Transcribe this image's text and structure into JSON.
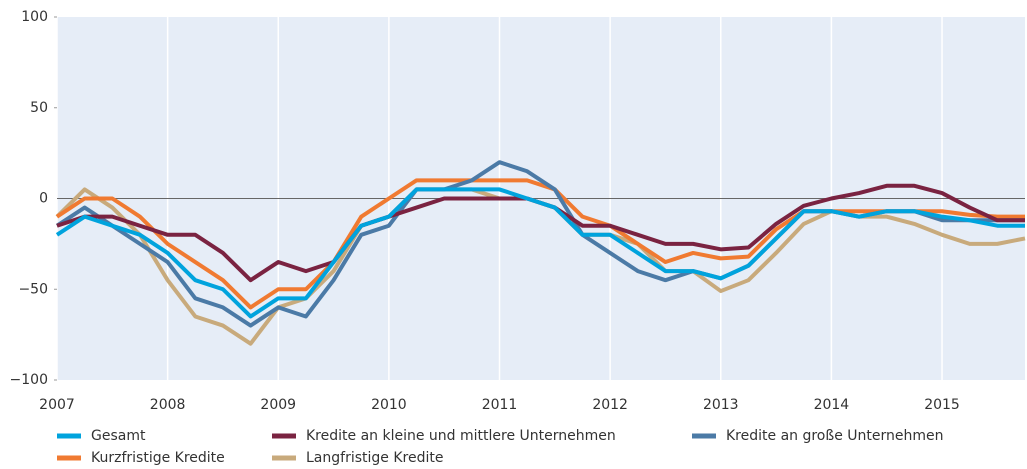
{
  "chart_data": {
    "type": "line",
    "x": [
      2007,
      2007.25,
      2007.5,
      2007.75,
      2008,
      2008.25,
      2008.5,
      2008.75,
      2009,
      2009.25,
      2009.5,
      2009.75,
      2010,
      2010.25,
      2010.5,
      2010.75,
      2011,
      2011.25,
      2011.5,
      2011.75,
      2012,
      2012.25,
      2012.5,
      2012.75,
      2013,
      2013.25,
      2013.5,
      2013.75,
      2014,
      2014.25,
      2014.5,
      2014.75,
      2015,
      2015.25,
      2015.5,
      2015.75
    ],
    "xlim": [
      2007,
      2015.75
    ],
    "xticks": [
      2007,
      2008,
      2009,
      2010,
      2011,
      2012,
      2013,
      2014,
      2015
    ],
    "ylim": [
      -100,
      100
    ],
    "yticks": [
      {
        "value": -100,
        "label": "−100"
      },
      {
        "value": -50,
        "label": "−50"
      },
      0,
      50,
      100
    ],
    "series": [
      {
        "name": "Gesamt",
        "color": "#00a3dd",
        "values": [
          -20,
          -10,
          -15,
          -20,
          -30,
          -45,
          -50,
          -65,
          -55,
          -55,
          -35,
          -15,
          -10,
          5,
          5,
          5,
          5,
          0,
          -5,
          -20,
          -20,
          -30,
          -40,
          -40,
          -44,
          -37,
          -22,
          -7,
          -7,
          -10,
          -7,
          -7,
          -10,
          -12,
          -15,
          -15
        ]
      },
      {
        "name": "Kredite an kleine und mittlere Unternehmen",
        "color": "#7a2341",
        "values": [
          -15,
          -10,
          -10,
          -15,
          -20,
          -20,
          -30,
          -45,
          -35,
          -40,
          -35,
          -15,
          -10,
          -5,
          0,
          0,
          0,
          0,
          -5,
          -15,
          -15,
          -20,
          -25,
          -25,
          -28,
          -27,
          -14,
          -4,
          0,
          3,
          7,
          7,
          3,
          -5,
          -12,
          -12
        ]
      },
      {
        "name": "Kredite an große Unternehmen",
        "color": "#4b7aa6",
        "values": [
          -15,
          -5,
          -15,
          -25,
          -35,
          -55,
          -60,
          -70,
          -60,
          -65,
          -45,
          -20,
          -15,
          5,
          5,
          10,
          20,
          15,
          5,
          -20,
          -30,
          -40,
          -45,
          -40,
          -44,
          -37,
          -22,
          -7,
          -7,
          -10,
          -7,
          -7,
          -12,
          -12,
          -12,
          -12
        ]
      },
      {
        "name": "Kurzfristige Kredite",
        "color": "#f07a31",
        "values": [
          -10,
          0,
          0,
          -10,
          -25,
          -35,
          -45,
          -60,
          -50,
          -50,
          -35,
          -10,
          0,
          10,
          10,
          10,
          10,
          10,
          5,
          -10,
          -15,
          -25,
          -35,
          -30,
          -33,
          -32,
          -17,
          -7,
          -7,
          -7,
          -7,
          -7,
          -7,
          -9,
          -10,
          -10
        ]
      },
      {
        "name": "Langfristige Kredite",
        "color": "#c8aa7c",
        "values": [
          -10,
          5,
          -5,
          -20,
          -45,
          -65,
          -70,
          -80,
          -60,
          -55,
          -40,
          -15,
          -10,
          5,
          5,
          5,
          0,
          0,
          -5,
          -20,
          -20,
          -25,
          -40,
          -40,
          -51,
          -45,
          -30,
          -14,
          -7,
          -10,
          -10,
          -14,
          -20,
          -25,
          -25,
          -22
        ]
      }
    ],
    "grid": true
  }
}
